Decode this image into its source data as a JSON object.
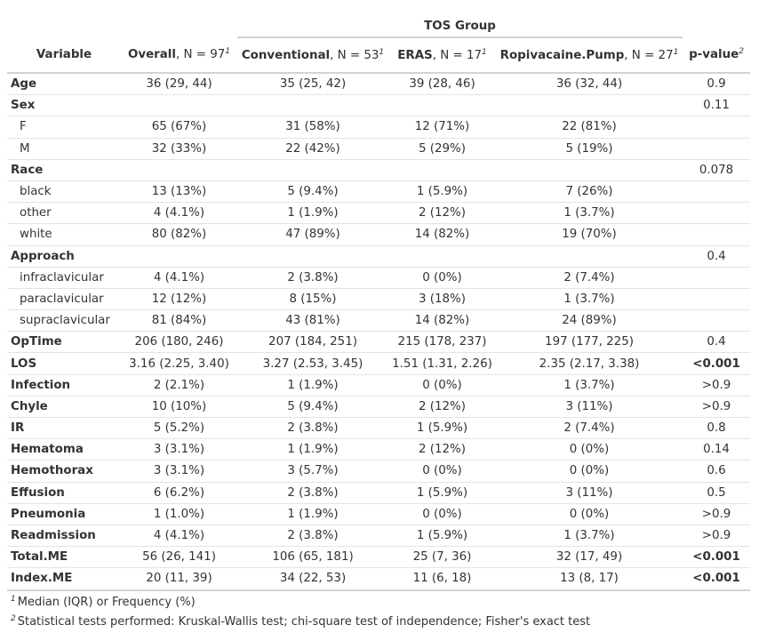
{
  "spanner": "TOS Group",
  "headers": {
    "variable": "Variable",
    "cols": [
      {
        "name": "Overall",
        "n": ", N = 97",
        "mark": "1"
      },
      {
        "name": "Conventional",
        "n": ", N = 53",
        "mark": "1"
      },
      {
        "name": "ERAS",
        "n": ", N = 17",
        "mark": "1"
      },
      {
        "name": "Ropivacaine.Pump",
        "n": ", N = 27",
        "mark": "1"
      }
    ],
    "pvalue": "p-value",
    "pvalue_mark": "2"
  },
  "rows": [
    {
      "label": "Age",
      "type": "var",
      "v": [
        "36 (29, 44)",
        "35 (25, 42)",
        "39 (28, 46)",
        "36 (32, 44)"
      ],
      "p": "0.9",
      "pbold": false
    },
    {
      "label": "Sex",
      "type": "var",
      "v": [
        "",
        "",
        "",
        ""
      ],
      "p": "0.11",
      "pbold": false
    },
    {
      "label": "F",
      "type": "level",
      "v": [
        "65 (67%)",
        "31 (58%)",
        "12 (71%)",
        "22 (81%)"
      ],
      "p": "",
      "pbold": false
    },
    {
      "label": "M",
      "type": "level",
      "v": [
        "32 (33%)",
        "22 (42%)",
        "5 (29%)",
        "5 (19%)"
      ],
      "p": "",
      "pbold": false
    },
    {
      "label": "Race",
      "type": "var",
      "v": [
        "",
        "",
        "",
        ""
      ],
      "p": "0.078",
      "pbold": false
    },
    {
      "label": "black",
      "type": "level",
      "v": [
        "13 (13%)",
        "5 (9.4%)",
        "1 (5.9%)",
        "7 (26%)"
      ],
      "p": "",
      "pbold": false
    },
    {
      "label": "other",
      "type": "level",
      "v": [
        "4 (4.1%)",
        "1 (1.9%)",
        "2 (12%)",
        "1 (3.7%)"
      ],
      "p": "",
      "pbold": false
    },
    {
      "label": "white",
      "type": "level",
      "v": [
        "80 (82%)",
        "47 (89%)",
        "14 (82%)",
        "19 (70%)"
      ],
      "p": "",
      "pbold": false
    },
    {
      "label": "Approach",
      "type": "var",
      "v": [
        "",
        "",
        "",
        ""
      ],
      "p": "0.4",
      "pbold": false
    },
    {
      "label": "infraclavicular",
      "type": "level",
      "v": [
        "4 (4.1%)",
        "2 (3.8%)",
        "0 (0%)",
        "2 (7.4%)"
      ],
      "p": "",
      "pbold": false
    },
    {
      "label": "paraclavicular",
      "type": "level",
      "v": [
        "12 (12%)",
        "8 (15%)",
        "3 (18%)",
        "1 (3.7%)"
      ],
      "p": "",
      "pbold": false
    },
    {
      "label": "supraclavicular",
      "type": "level",
      "v": [
        "81 (84%)",
        "43 (81%)",
        "14 (82%)",
        "24 (89%)"
      ],
      "p": "",
      "pbold": false
    },
    {
      "label": "OpTime",
      "type": "var",
      "v": [
        "206 (180, 246)",
        "207 (184, 251)",
        "215 (178, 237)",
        "197 (177, 225)"
      ],
      "p": "0.4",
      "pbold": false
    },
    {
      "label": "LOS",
      "type": "var",
      "v": [
        "3.16 (2.25, 3.40)",
        "3.27 (2.53, 3.45)",
        "1.51 (1.31, 2.26)",
        "2.35 (2.17, 3.38)"
      ],
      "p": "<0.001",
      "pbold": true
    },
    {
      "label": "Infection",
      "type": "var",
      "v": [
        "2 (2.1%)",
        "1 (1.9%)",
        "0 (0%)",
        "1 (3.7%)"
      ],
      "p": ">0.9",
      "pbold": false
    },
    {
      "label": "Chyle",
      "type": "var",
      "v": [
        "10 (10%)",
        "5 (9.4%)",
        "2 (12%)",
        "3 (11%)"
      ],
      "p": ">0.9",
      "pbold": false
    },
    {
      "label": "IR",
      "type": "var",
      "v": [
        "5 (5.2%)",
        "2 (3.8%)",
        "1 (5.9%)",
        "2 (7.4%)"
      ],
      "p": "0.8",
      "pbold": false
    },
    {
      "label": "Hematoma",
      "type": "var",
      "v": [
        "3 (3.1%)",
        "1 (1.9%)",
        "2 (12%)",
        "0 (0%)"
      ],
      "p": "0.14",
      "pbold": false
    },
    {
      "label": "Hemothorax",
      "type": "var",
      "v": [
        "3 (3.1%)",
        "3 (5.7%)",
        "0 (0%)",
        "0 (0%)"
      ],
      "p": "0.6",
      "pbold": false
    },
    {
      "label": "Effusion",
      "type": "var",
      "v": [
        "6 (6.2%)",
        "2 (3.8%)",
        "1 (5.9%)",
        "3 (11%)"
      ],
      "p": "0.5",
      "pbold": false
    },
    {
      "label": "Pneumonia",
      "type": "var",
      "v": [
        "1 (1.0%)",
        "1 (1.9%)",
        "0 (0%)",
        "0 (0%)"
      ],
      "p": ">0.9",
      "pbold": false
    },
    {
      "label": "Readmission",
      "type": "var",
      "v": [
        "4 (4.1%)",
        "2 (3.8%)",
        "1 (5.9%)",
        "1 (3.7%)"
      ],
      "p": ">0.9",
      "pbold": false
    },
    {
      "label": "Total.ME",
      "type": "var",
      "v": [
        "56 (26, 141)",
        "106 (65, 181)",
        "25 (7, 36)",
        "32 (17, 49)"
      ],
      "p": "<0.001",
      "pbold": true
    },
    {
      "label": "Index.ME",
      "type": "var",
      "v": [
        "20 (11, 39)",
        "34 (22, 53)",
        "11 (6, 18)",
        "13 (8, 17)"
      ],
      "p": "<0.001",
      "pbold": true
    }
  ],
  "footnotes": [
    {
      "mark": "1",
      "text": "Median (IQR) or Frequency (%)"
    },
    {
      "mark": "2",
      "text": "Statistical tests performed: Kruskal-Wallis test; chi-square test of independence; Fisher's exact test"
    }
  ]
}
